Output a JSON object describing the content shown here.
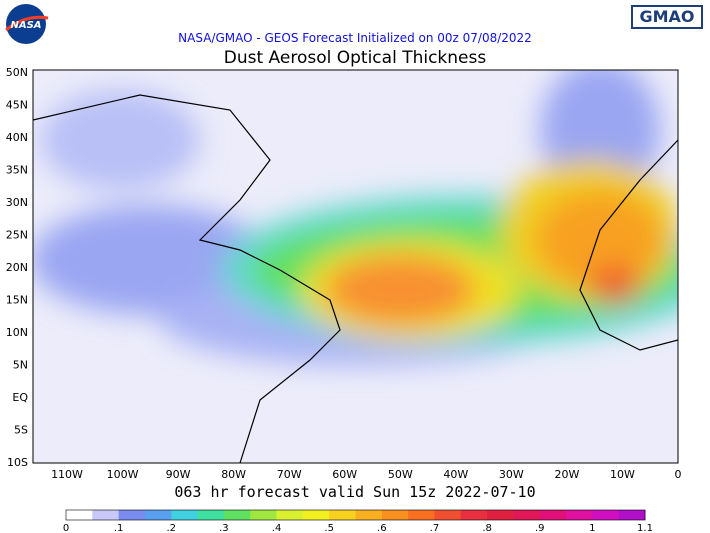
{
  "header": {
    "logo_left": "NASA",
    "logo_right": "GMAO",
    "subtitle": "NASA/GMAO - GEOS Forecast Initialized on 00z 07/08/2022",
    "title": "Dust Aerosol Optical Thickness"
  },
  "map": {
    "lat_labels": [
      "50N",
      "45N",
      "40N",
      "35N",
      "30N",
      "25N",
      "20N",
      "15N",
      "10N",
      "5N",
      "EQ",
      "5S",
      "10S"
    ],
    "lon_labels": [
      "110W",
      "100W",
      "90W",
      "80W",
      "70W",
      "60W",
      "50W",
      "40W",
      "30W",
      "20W",
      "10W",
      "0"
    ]
  },
  "footer": {
    "valid": "063 hr forecast valid Sun 15z 2022-07-10"
  },
  "colorbar": {
    "labels": [
      "0",
      ".1",
      ".2",
      ".3",
      ".4",
      ".5",
      ".6",
      ".7",
      ".8",
      ".9",
      "1",
      "1.1"
    ],
    "colors": [
      "#ffffff",
      "#c8c8f8",
      "#7a8cf0",
      "#5aa0f0",
      "#40d0e0",
      "#40e0a0",
      "#60e060",
      "#a0e840",
      "#d8f030",
      "#f0f020",
      "#f8d020",
      "#f8b020",
      "#f89020",
      "#f87020",
      "#f05030",
      "#e83040",
      "#e02040",
      "#e01858",
      "#e01078",
      "#e010a0",
      "#d010c0",
      "#b010c8"
    ]
  }
}
